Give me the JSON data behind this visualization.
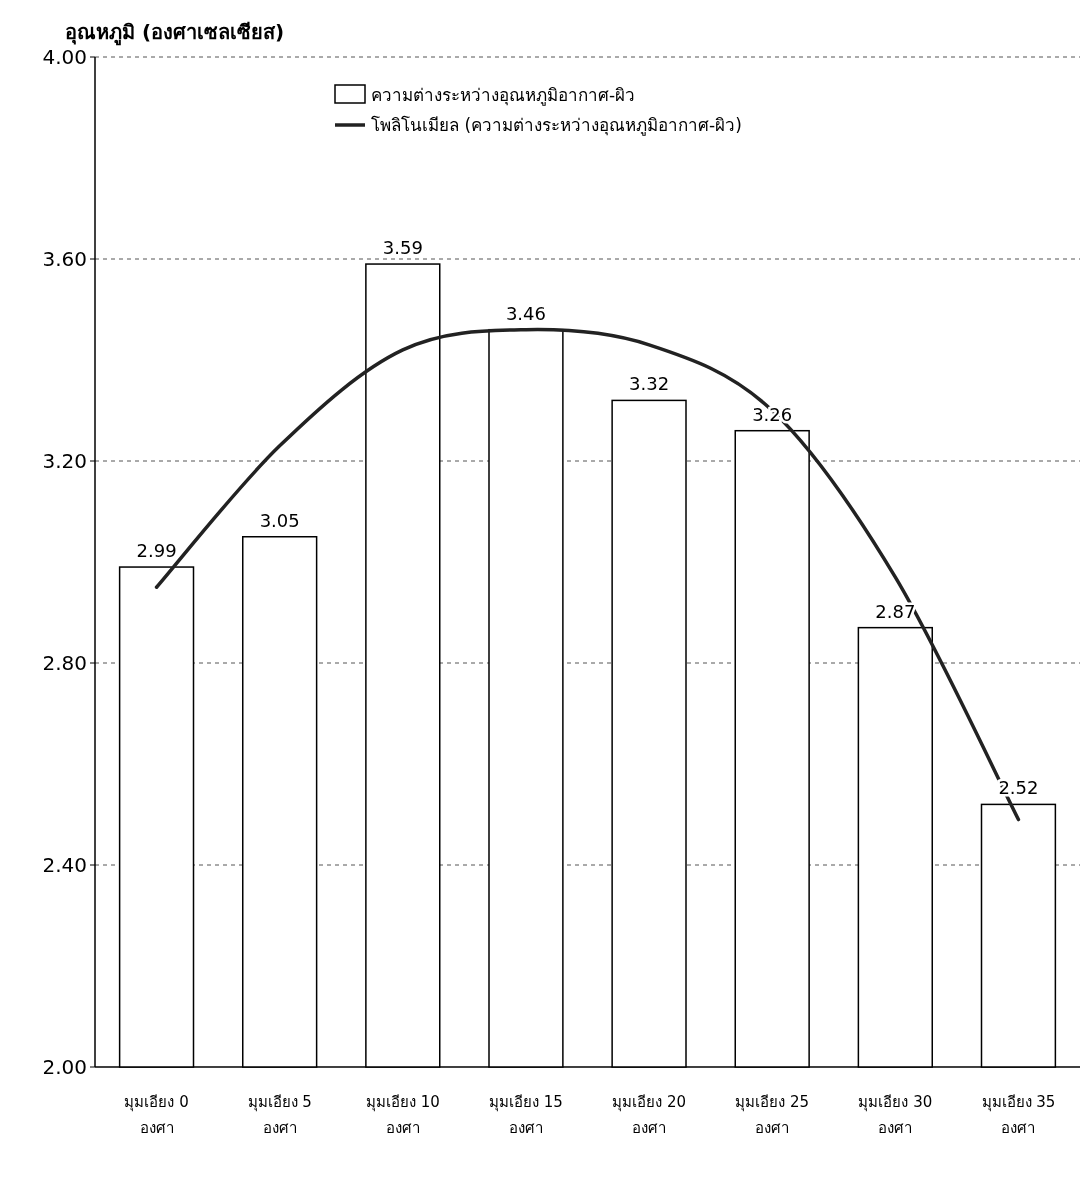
{
  "chart_data": {
    "type": "bar",
    "ylabel": "อุณหภูมิ (องศาเซลเซียส)",
    "categories": [
      "มุมเอียง 0 องศา",
      "มุมเอียง 5 องศา",
      "มุมเอียง 10 องศา",
      "มุมเอียง 15 องศา",
      "มุมเอียง 20 องศา",
      "มุมเอียง 25 องศา",
      "มุมเอียง 30 องศา",
      "มุมเอียง 35 องศา"
    ],
    "series": [
      {
        "name": "ความต่างระหว่างอุณหภูมิอากาศ-ผิว",
        "color": "#ffffff",
        "values": [
          2.99,
          3.05,
          3.59,
          3.46,
          3.32,
          3.26,
          2.87,
          2.52
        ],
        "value_labels": [
          "2.99",
          "3.05",
          "3.59",
          "3.46",
          "3.32",
          "3.26",
          "2.87",
          "2.52"
        ]
      },
      {
        "name": "โพลิโนเมียล (ความต่างระหว่างอุณหภูมิอากาศ-ผิว)",
        "type": "line",
        "color": "#222222",
        "values": [
          2.95,
          3.23,
          3.42,
          3.46,
          3.43,
          3.3,
          2.97,
          2.49
        ]
      }
    ],
    "ylim": [
      2,
      4
    ],
    "yticks": [
      {
        "value": 2,
        "label": "2.00"
      },
      {
        "value": 2.4,
        "label": "2.40"
      },
      {
        "value": 2.8,
        "label": "2.80"
      },
      {
        "value": 3.2,
        "label": "3.20"
      },
      {
        "value": 3.6,
        "label": "3.60"
      },
      {
        "value": 4,
        "label": "4.00"
      }
    ],
    "grid": "y",
    "legend": "top"
  }
}
